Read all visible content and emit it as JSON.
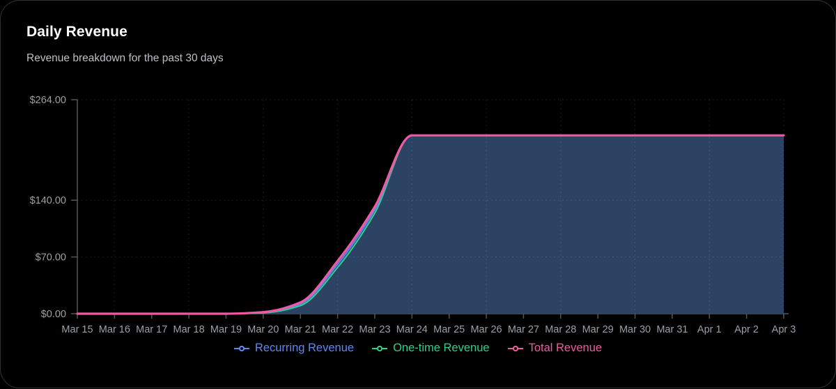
{
  "card": {
    "title": "Daily Revenue",
    "subtitle": "Revenue breakdown for the past 30 days"
  },
  "chart_data": {
    "type": "area",
    "title": "Daily Revenue",
    "subtitle": "Revenue breakdown for the past 30 days",
    "x": [
      "Mar 15",
      "Mar 16",
      "Mar 17",
      "Mar 18",
      "Mar 19",
      "Mar 20",
      "Mar 21",
      "Mar 22",
      "Mar 23",
      "Mar 24",
      "Mar 25",
      "Mar 26",
      "Mar 27",
      "Mar 28",
      "Mar 29",
      "Mar 30",
      "Mar 31",
      "Apr 1",
      "Apr 2",
      "Apr 3"
    ],
    "series": [
      {
        "name": "Recurring Revenue",
        "color": "#5b8af5",
        "values": [
          0,
          0,
          0,
          0,
          0,
          1.5,
          12,
          61,
          128,
          220,
          220,
          220,
          220,
          220,
          220,
          220,
          220,
          220,
          220,
          220
        ]
      },
      {
        "name": "One-time Revenue",
        "color": "#2fd08b",
        "values": [
          0,
          0,
          0,
          0,
          0,
          1,
          10,
          57,
          124,
          220,
          220,
          220,
          220,
          220,
          220,
          220,
          220,
          220,
          220,
          220
        ]
      },
      {
        "name": "Total Revenue",
        "color": "#ef5aa2",
        "values": [
          0,
          0,
          0,
          0,
          0,
          2,
          14,
          65,
          132,
          220,
          220,
          220,
          220,
          220,
          220,
          220,
          220,
          220,
          220,
          220
        ]
      }
    ],
    "fill_series": "Total Revenue",
    "fill_color": "#2c4363",
    "ylim": [
      0,
      264
    ],
    "y_ticks": [
      {
        "value": 0,
        "label": "$0.00"
      },
      {
        "value": 70,
        "label": "$70.00"
      },
      {
        "value": 140,
        "label": "$140.00"
      },
      {
        "value": 264,
        "label": "$264.00"
      }
    ],
    "grid": "dashed, horizontal at ticks, vertical every 2nd day",
    "legend_position": "bottom"
  }
}
